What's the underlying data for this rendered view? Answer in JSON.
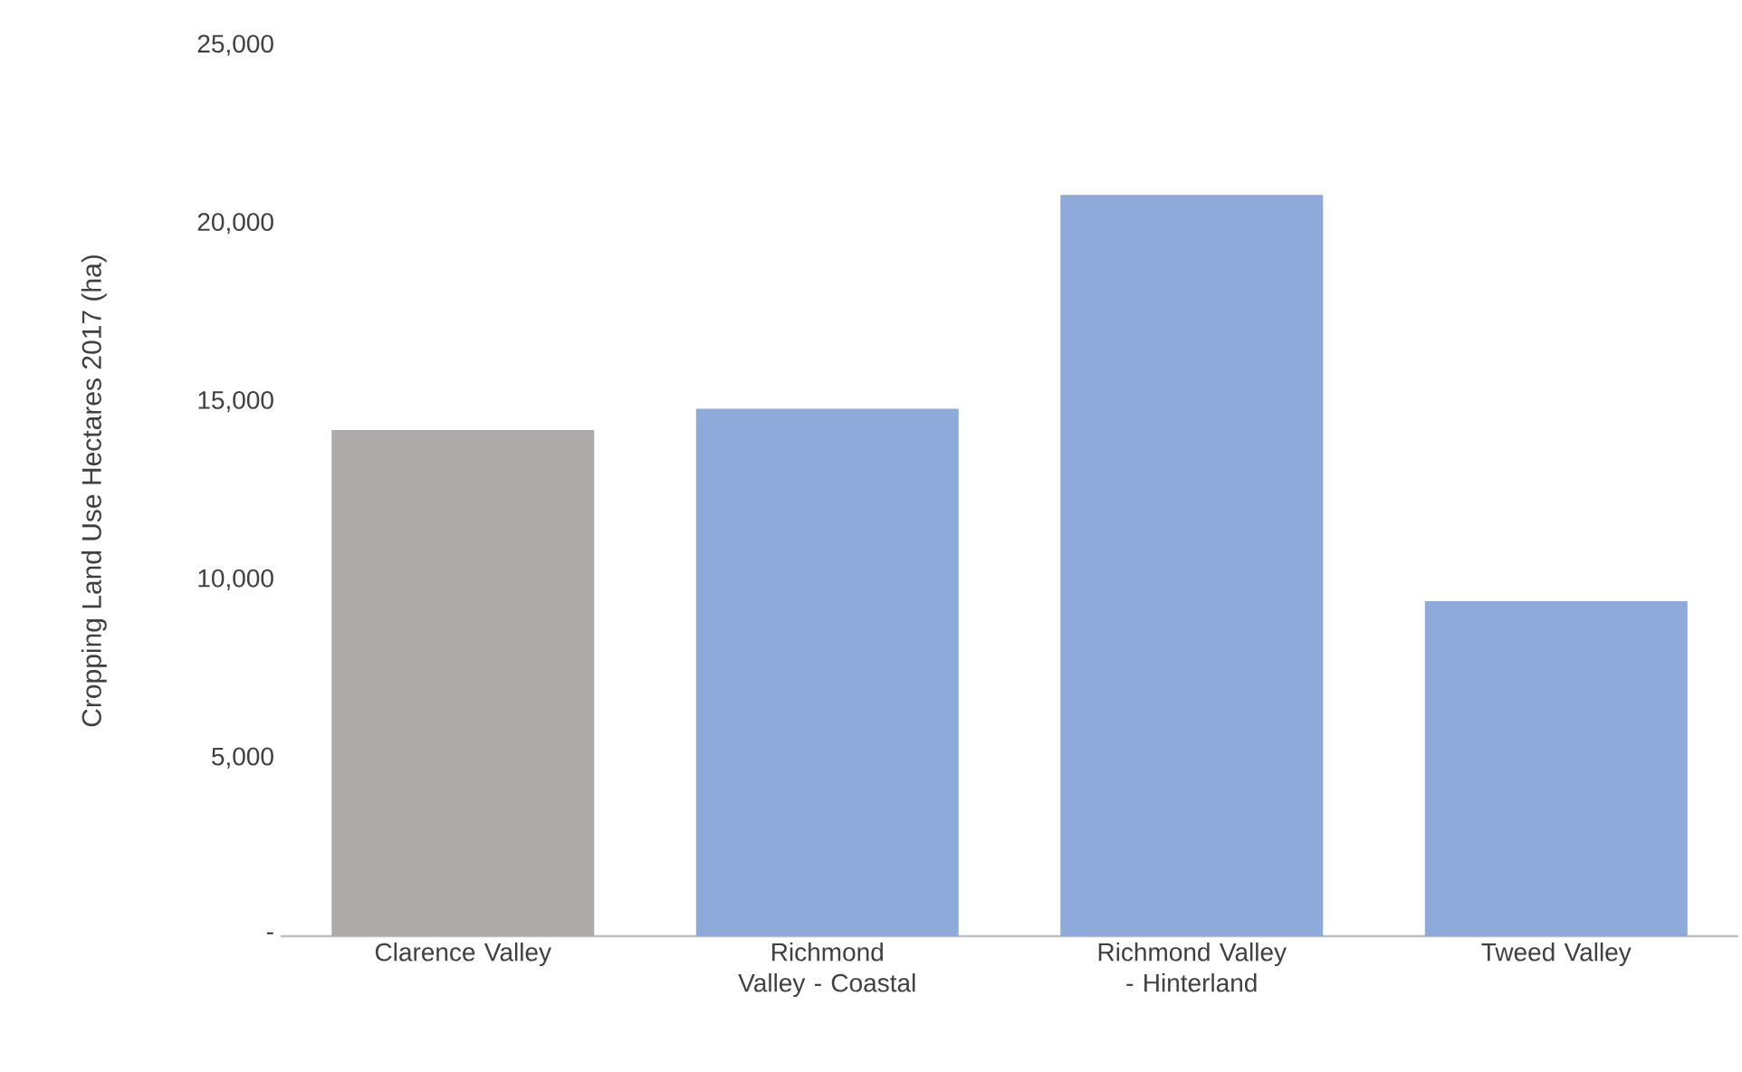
{
  "chart_data": {
    "type": "bar",
    "ylabel": "Cropping Land Use Hectares 2017 (ha)",
    "categories": [
      "Clarence Valley",
      "Richmond Valley - Coastal",
      "Richmond Valley - Hinterland",
      "Tweed Valley"
    ],
    "values": [
      14200,
      14800,
      20800,
      9400
    ],
    "colors": [
      "#aeaaaa",
      "#8eaadb",
      "#8eaadb",
      "#8eaadb"
    ],
    "ylim": [
      0,
      25000
    ],
    "yticks": [
      {
        "value": 0,
        "label": "-"
      },
      {
        "value": 5000,
        "label": "5,000"
      },
      {
        "value": 10000,
        "label": "10,000"
      },
      {
        "value": 15000,
        "label": "15,000"
      },
      {
        "value": 20000,
        "label": "20,000"
      },
      {
        "value": 25000,
        "label": "25,000"
      }
    ]
  }
}
